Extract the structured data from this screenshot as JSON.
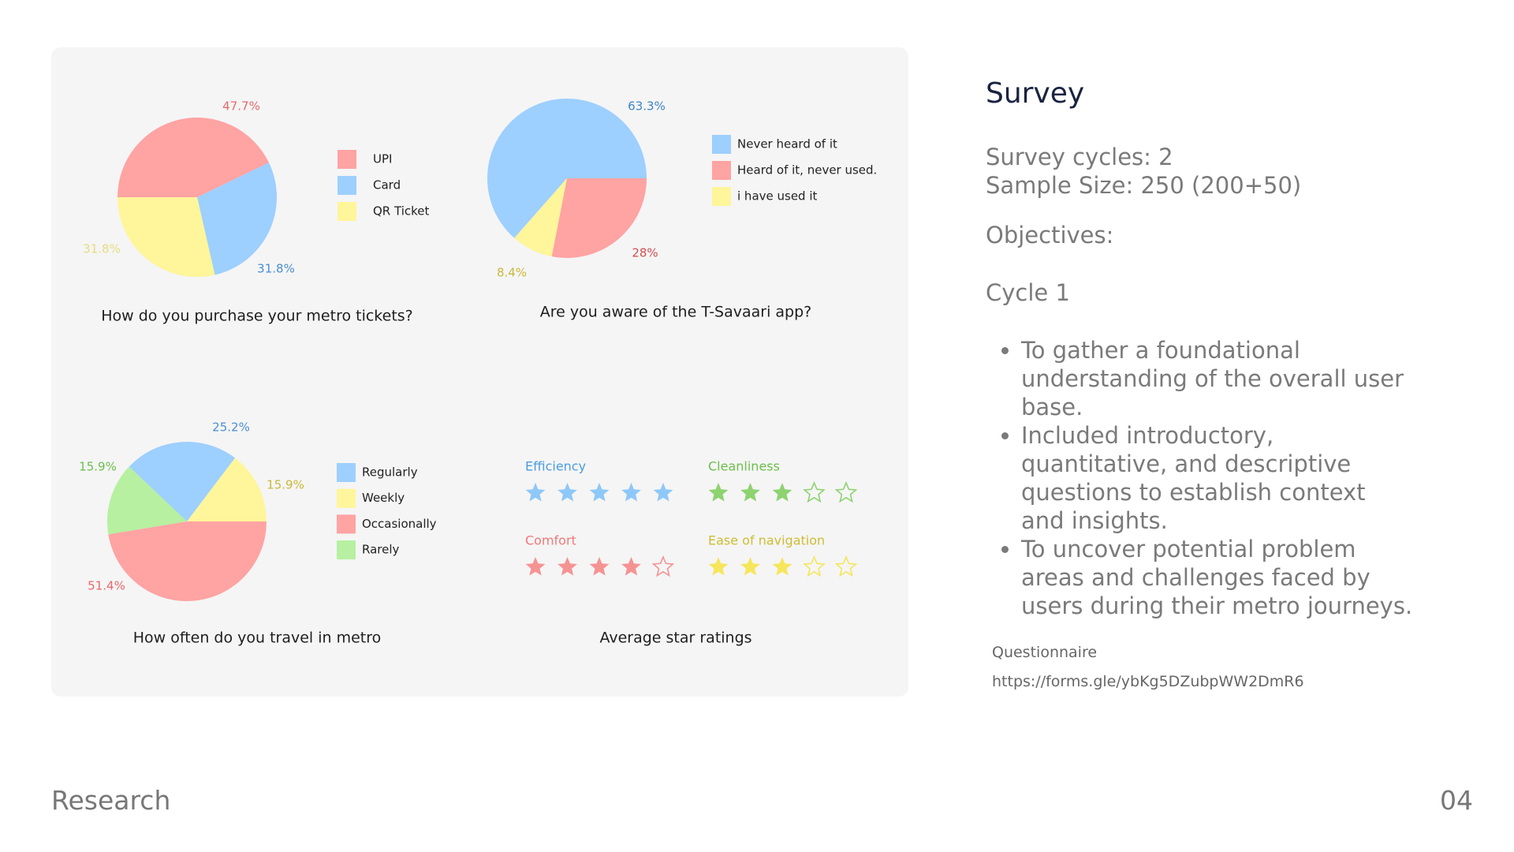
{
  "chart_data": [
    {
      "type": "pie",
      "title": "How do you purchase your metro tickets?",
      "categories": [
        "UPI",
        "Card",
        "QR Ticket"
      ],
      "values": [
        47.7,
        31.8,
        31.8
      ],
      "value_labels": [
        "47.7%",
        "31.8%",
        "31.8%"
      ],
      "colors": [
        "#ffa3a3",
        "#9dcfff",
        "#fff59a"
      ],
      "label_colors": [
        "#e8696b",
        "#4a8fd0",
        "#e6dc80"
      ]
    },
    {
      "type": "pie",
      "title": "Are you aware of the T-Savaari app?",
      "categories": [
        "Never heard of it",
        "Heard of it, never used.",
        "i have used it"
      ],
      "values": [
        63.3,
        28,
        8.4
      ],
      "value_labels": [
        "63.3%",
        "28%",
        "8.4%"
      ],
      "colors": [
        "#9dcfff",
        "#ffa3a3",
        "#fff59a"
      ],
      "label_colors": [
        "#3f86c6",
        "#d24f52",
        "#c9b93a"
      ]
    },
    {
      "type": "pie",
      "title": "How often do you travel in metro",
      "categories": [
        "Regularly",
        "Weekly",
        "Occasionally",
        "Rarely"
      ],
      "values": [
        25.2,
        15.9,
        51.4,
        15.9
      ],
      "value_labels": [
        "25.2%",
        "15.9%",
        "51.4%",
        "15.9%"
      ],
      "colors": [
        "#9dcfff",
        "#fff59a",
        "#ffa3a3",
        "#b6f0a0"
      ],
      "label_colors": [
        "#4a8fd0",
        "#c9b93a",
        "#e8696b",
        "#6cbf4c"
      ]
    },
    {
      "type": "rating",
      "title": "Average star ratings",
      "max": 5,
      "categories": [
        "Efficiency",
        "Cleanliness",
        "Comfort",
        "Ease of navigation"
      ],
      "values": [
        5,
        3,
        4,
        3
      ],
      "colors": [
        "#8ec8f8",
        "#8dd36f",
        "#f59393",
        "#f5e65c"
      ],
      "label_colors": [
        "#4a9de0",
        "#6cbf4c",
        "#f07878",
        "#cdbd35"
      ]
    }
  ],
  "panel": {
    "title": "Survey",
    "lines": [
      "Survey cycles: 2",
      "Sample Size: 250 (200+50)"
    ],
    "objectives": "Objectives:",
    "cycle": "Cycle 1",
    "bullets": [
      "To gather a foundational understanding of the overall user base.",
      "Included introductory, quantitative, and descriptive questions to establish context and insights.",
      "To uncover potential problem areas and challenges faced by users during their metro journeys."
    ],
    "questionnaire_label": "Questionnaire",
    "questionnaire_url": "https://forms.gle/ybKg5DZubpWW2DmR6"
  },
  "footer": {
    "section": "Research",
    "page": "04"
  }
}
